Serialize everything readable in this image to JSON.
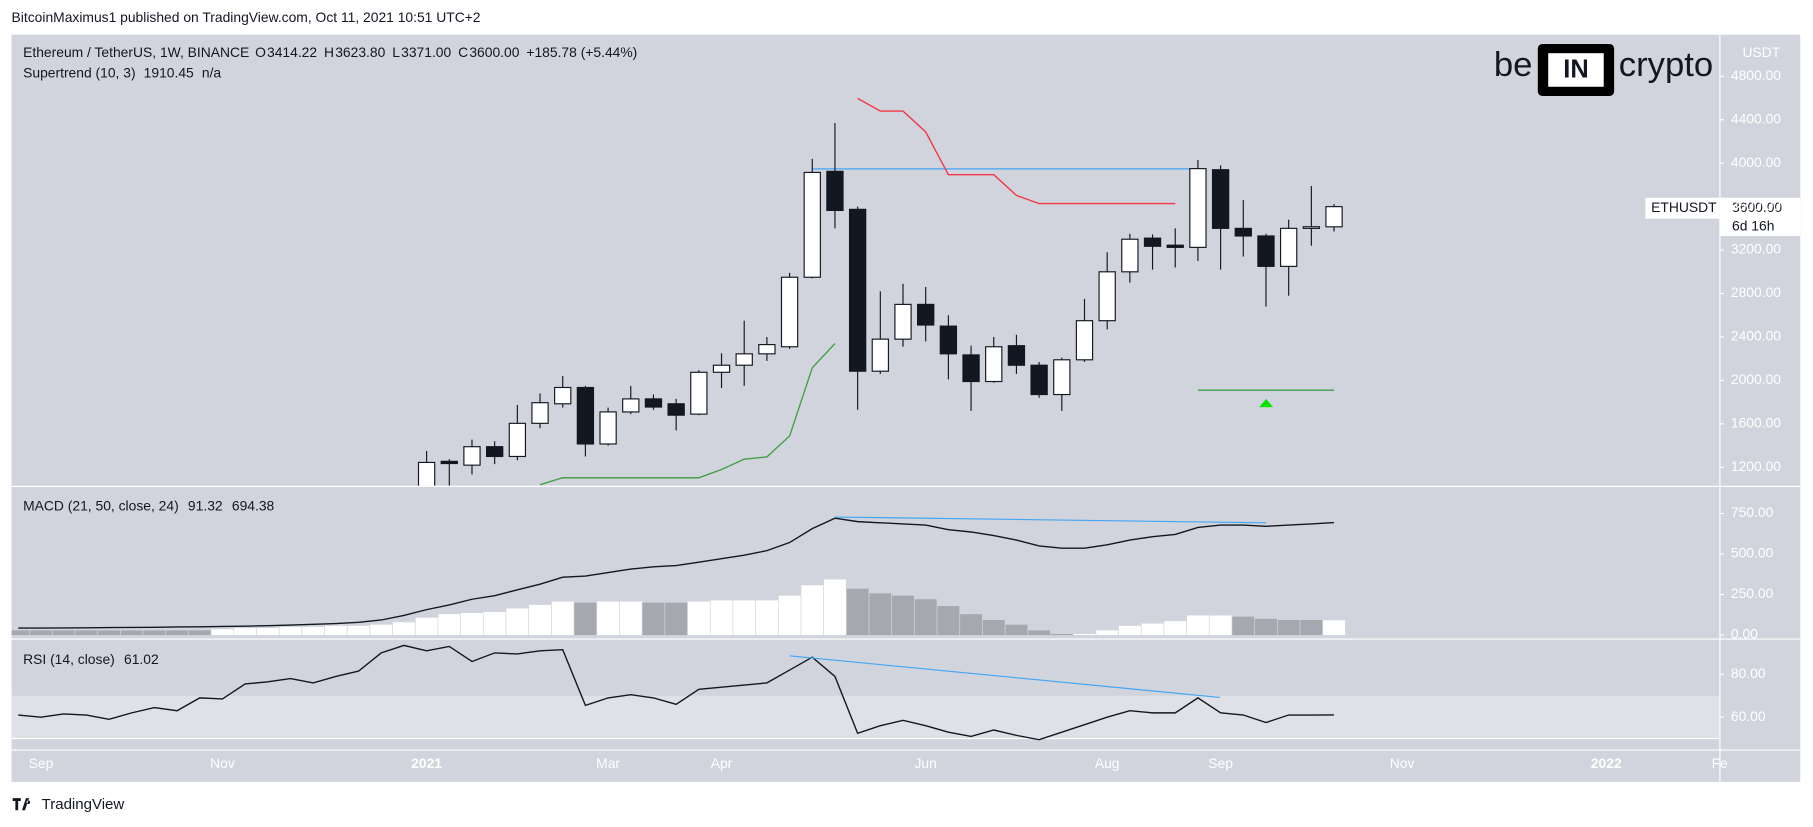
{
  "header": {
    "publisher": "BitcoinMaximus1 published on TradingView.com, Oct 11, 2021 10:51 UTC+2",
    "footer": "TradingView"
  },
  "chart_data": {
    "type": "candlestick",
    "title": "Ethereum / TetherUS, 1W, BINANCE",
    "legend_letters": [
      "O",
      "H",
      "L",
      "C"
    ],
    "legend_values": [
      "3414.22",
      "3623.80",
      "3371.00",
      "3600.00"
    ],
    "change_label": "+185.78 (+5.44%)",
    "symbol": "ETHUSDT",
    "currency": "USDT",
    "countdown": "6d 16h",
    "watermark": [
      "be",
      "IN",
      "crypto"
    ],
    "categories": [
      null,
      "Sep",
      null,
      null,
      null,
      null,
      null,
      null,
      null,
      "Nov",
      null,
      null,
      null,
      null,
      null,
      null,
      null,
      null,
      "2021",
      null,
      null,
      null,
      null,
      null,
      null,
      null,
      "Mar",
      null,
      null,
      null,
      null,
      "Apr",
      null,
      null,
      null,
      null,
      null,
      null,
      null,
      null,
      "Jun",
      null,
      null,
      null,
      null,
      null,
      null,
      null,
      "Aug",
      null,
      null,
      null,
      null,
      "Sep",
      null,
      null,
      null,
      null,
      null,
      null,
      null,
      "Nov",
      null,
      null,
      null,
      null,
      null,
      null,
      null,
      null,
      "2022",
      null,
      null,
      null,
      null,
      "Fe"
    ],
    "open": [
      null,
      null,
      null,
      null,
      null,
      null,
      null,
      null,
      null,
      null,
      null,
      null,
      null,
      null,
      null,
      null,
      null,
      null,
      1000,
      1255,
      1220,
      1390,
      1300,
      1605,
      1785,
      1935,
      1415,
      1710,
      1830,
      1785,
      1690,
      2075,
      2140,
      2245,
      2310,
      2950,
      3925,
      3575,
      2085,
      2380,
      2700,
      2500,
      2235,
      1990,
      2320,
      2140,
      1870,
      2190,
      2550,
      3000,
      3310,
      3245,
      3225,
      3940,
      3400,
      3330,
      3050,
      3400,
      3414.22,
      null,
      null,
      null,
      null,
      null,
      null,
      null,
      null,
      null,
      null,
      null,
      null,
      null,
      null,
      null,
      null,
      null
    ],
    "high": [
      null,
      null,
      null,
      null,
      null,
      null,
      null,
      null,
      null,
      null,
      null,
      null,
      null,
      null,
      null,
      null,
      null,
      null,
      1350,
      1275,
      1455,
      1440,
      1775,
      1880,
      2040,
      1950,
      1750,
      1950,
      1870,
      1830,
      2095,
      2250,
      2550,
      2400,
      2990,
      4040,
      4370,
      3600,
      2820,
      2890,
      2860,
      2600,
      2320,
      2400,
      2420,
      2170,
      2210,
      2750,
      3180,
      3350,
      3345,
      3400,
      4030,
      3980,
      3660,
      3350,
      3480,
      3790,
      3623.8,
      null,
      null,
      null,
      null,
      null,
      null,
      null,
      null,
      null,
      null,
      null,
      null,
      null,
      null,
      null,
      null,
      null
    ],
    "low": [
      null,
      null,
      null,
      null,
      null,
      null,
      null,
      null,
      null,
      null,
      null,
      null,
      null,
      null,
      null,
      null,
      null,
      null,
      900,
      1030,
      1135,
      1230,
      1265,
      1560,
      1750,
      1300,
      1400,
      1690,
      1730,
      1540,
      1680,
      1930,
      1950,
      2180,
      2290,
      2940,
      3400,
      1730,
      2060,
      2310,
      2360,
      2010,
      1720,
      1980,
      2060,
      1840,
      1720,
      2170,
      2470,
      2900,
      3020,
      3040,
      3100,
      3020,
      3140,
      2680,
      2780,
      3240,
      3371,
      null,
      null,
      null,
      null,
      null,
      null,
      null,
      null,
      null,
      null,
      null,
      null,
      null,
      null,
      null,
      null,
      null
    ],
    "close": [
      null,
      null,
      null,
      null,
      null,
      null,
      null,
      null,
      null,
      null,
      null,
      null,
      null,
      null,
      null,
      null,
      null,
      null,
      1245,
      1235,
      1390,
      1300,
      1605,
      1795,
      1935,
      1415,
      1710,
      1830,
      1755,
      1680,
      2075,
      2140,
      2245,
      2330,
      2950,
      3915,
      3565,
      2085,
      2380,
      2700,
      2510,
      2245,
      1990,
      2310,
      2140,
      1870,
      2190,
      2550,
      3000,
      3300,
      3235,
      3225,
      3950,
      3400,
      3330,
      3050,
      3400,
      3415,
      3600,
      null,
      null,
      null,
      null,
      null,
      null,
      null,
      null,
      null,
      null,
      null,
      null,
      null,
      null,
      null,
      null,
      null
    ],
    "up_color": "#ffffff",
    "down_color": "#131722",
    "ylim": [
      1030,
      5183
    ],
    "yticks": [
      {
        "value": 1200,
        "label": "1200.00"
      },
      {
        "value": 1600,
        "label": "1600.00"
      },
      {
        "value": 2000,
        "label": "2000.00"
      },
      {
        "value": 2400,
        "label": "2400.00"
      },
      {
        "value": 2800,
        "label": "2800.00"
      },
      {
        "value": 3200,
        "label": "3200.00"
      },
      {
        "value": 3600,
        "label": "3600.00"
      },
      {
        "value": 4000,
        "label": "4000.00"
      },
      {
        "value": 4400,
        "label": "4400.00"
      },
      {
        "value": 4800,
        "label": "4800.00"
      }
    ],
    "supertrend": {
      "name": "Supertrend (10, 3)",
      "status": "n/a",
      "up_color": "#43a047",
      "down_color": "#f23645",
      "up": [
        null,
        null,
        null,
        null,
        null,
        null,
        null,
        null,
        null,
        null,
        null,
        null,
        null,
        null,
        null,
        null,
        null,
        null,
        null,
        null,
        null,
        null,
        null,
        1040,
        1104,
        1104,
        1104,
        1104,
        1104,
        1104,
        1104,
        1180,
        1275,
        1296,
        1488,
        2116,
        2340,
        null,
        null,
        null,
        null,
        null,
        null,
        null,
        null,
        null,
        null,
        null,
        null,
        null,
        null,
        null,
        1910.45,
        1910.45,
        1910.45,
        1910.45,
        1910.45,
        1910.45,
        1910.45,
        null,
        null,
        null,
        null,
        null,
        null,
        null,
        null,
        null,
        null,
        null,
        null,
        null,
        null,
        null,
        null,
        null
      ],
      "down": [
        null,
        null,
        null,
        null,
        null,
        null,
        null,
        null,
        null,
        null,
        null,
        null,
        null,
        null,
        null,
        null,
        null,
        null,
        null,
        null,
        null,
        null,
        null,
        null,
        null,
        null,
        null,
        null,
        null,
        null,
        null,
        null,
        null,
        null,
        null,
        null,
        null,
        4597,
        4480,
        4480,
        4288,
        3894,
        3894,
        3894,
        3703,
        3628,
        3628,
        3628,
        3628,
        3628,
        3628,
        3628,
        null,
        null,
        null,
        null,
        null,
        null,
        null,
        null,
        null,
        null,
        null,
        null,
        null,
        null,
        null,
        null,
        null,
        null,
        null,
        null,
        null,
        null,
        null,
        null
      ]
    },
    "macd": {
      "title": "MACD (21, 50, close, 24)",
      "histogram": [
        29,
        29,
        29,
        29,
        29,
        29,
        29,
        29,
        29,
        36,
        43,
        43,
        50,
        50,
        57,
        57,
        64,
        79,
        107,
        129,
        136,
        143,
        164,
        186,
        207,
        200,
        207,
        207,
        200,
        200,
        207,
        214,
        214,
        214,
        243,
        307,
        343,
        286,
        257,
        243,
        221,
        179,
        129,
        93,
        64,
        29,
        7,
        7,
        29,
        57,
        71,
        86,
        121,
        121,
        114,
        100,
        93,
        93,
        91.32,
        null,
        null,
        null,
        null,
        null,
        null,
        null,
        null,
        null,
        null,
        null,
        null,
        null,
        null,
        null,
        null,
        null
      ],
      "histogram_colors": [
        "#a6a8b0",
        "#a6a8b0",
        "#a6a8b0",
        "#a6a8b0",
        "#a6a8b0",
        "#a6a8b0",
        "#a6a8b0",
        "#a6a8b0",
        "#a6a8b0",
        "#ffffff",
        "#ffffff",
        "#ffffff",
        "#ffffff",
        "#ffffff",
        "#ffffff",
        "#ffffff",
        "#ffffff",
        "#ffffff",
        "#ffffff",
        "#ffffff",
        "#ffffff",
        "#ffffff",
        "#ffffff",
        "#ffffff",
        "#ffffff",
        "#a6a8b0",
        "#ffffff",
        "#ffffff",
        "#a6a8b0",
        "#a6a8b0",
        "#ffffff",
        "#ffffff",
        "#ffffff",
        "#ffffff",
        "#ffffff",
        "#ffffff",
        "#ffffff",
        "#a6a8b0",
        "#a6a8b0",
        "#a6a8b0",
        "#a6a8b0",
        "#a6a8b0",
        "#a6a8b0",
        "#a6a8b0",
        "#a6a8b0",
        "#a6a8b0",
        "#a6a8b0",
        "#ffffff",
        "#ffffff",
        "#ffffff",
        "#ffffff",
        "#ffffff",
        "#ffffff",
        "#ffffff",
        "#a6a8b0",
        "#a6a8b0",
        "#a6a8b0",
        "#a6a8b0",
        "#ffffff",
        null,
        null,
        null,
        null,
        null,
        null,
        null,
        null,
        null,
        null,
        null,
        null,
        null,
        null,
        null,
        null,
        null
      ],
      "line": [
        43,
        43,
        44,
        45,
        46,
        47,
        48,
        50,
        51,
        53,
        55,
        58,
        62,
        66,
        71,
        79,
        93,
        121,
        157,
        186,
        221,
        243,
        279,
        314,
        357,
        364,
        386,
        407,
        421,
        429,
        450,
        471,
        493,
        521,
        571,
        657,
        721,
        700,
        693,
        686,
        679,
        650,
        636,
        614,
        586,
        550,
        536,
        536,
        557,
        586,
        607,
        621,
        664,
        679,
        679,
        671,
        679,
        686,
        694.38,
        null,
        null,
        null,
        null,
        null,
        null,
        null,
        null,
        null,
        null,
        null,
        null,
        null,
        null,
        null,
        null,
        null
      ],
      "line_color": "#131722",
      "ylim": [
        -21,
        914
      ],
      "yticks": [
        {
          "value": 0,
          "label": "0.00"
        },
        {
          "value": 250,
          "label": "250.00"
        },
        {
          "value": 500,
          "label": "500.00"
        },
        {
          "value": 750,
          "label": "750.00"
        }
      ]
    },
    "rsi": {
      "title": "RSI (14, close)",
      "values": [
        61,
        60,
        61.5,
        61,
        59,
        62,
        64.5,
        63,
        69,
        68.5,
        75.5,
        76.5,
        78,
        76,
        79,
        81.5,
        90,
        93.5,
        91,
        93,
        86,
        90,
        89.5,
        91,
        91.5,
        65.5,
        69,
        70.5,
        69,
        66,
        73,
        74,
        75,
        76,
        82,
        88,
        79,
        52.5,
        56,
        58.5,
        56,
        53,
        51,
        54,
        51.5,
        49.5,
        53,
        56.5,
        60,
        63,
        62,
        62,
        69,
        62,
        61,
        57.5,
        61,
        61,
        61.02,
        null,
        null,
        null,
        null,
        null,
        null,
        null,
        null,
        null,
        null,
        null,
        null,
        null,
        null,
        null,
        null,
        null
      ],
      "color": "#131722",
      "band": [
        50,
        70
      ],
      "ylim": [
        44.9,
        96.2
      ],
      "yticks": [
        {
          "value": 60,
          "label": "60.00"
        },
        {
          "value": 80,
          "label": "80.00"
        }
      ]
    }
  }
}
